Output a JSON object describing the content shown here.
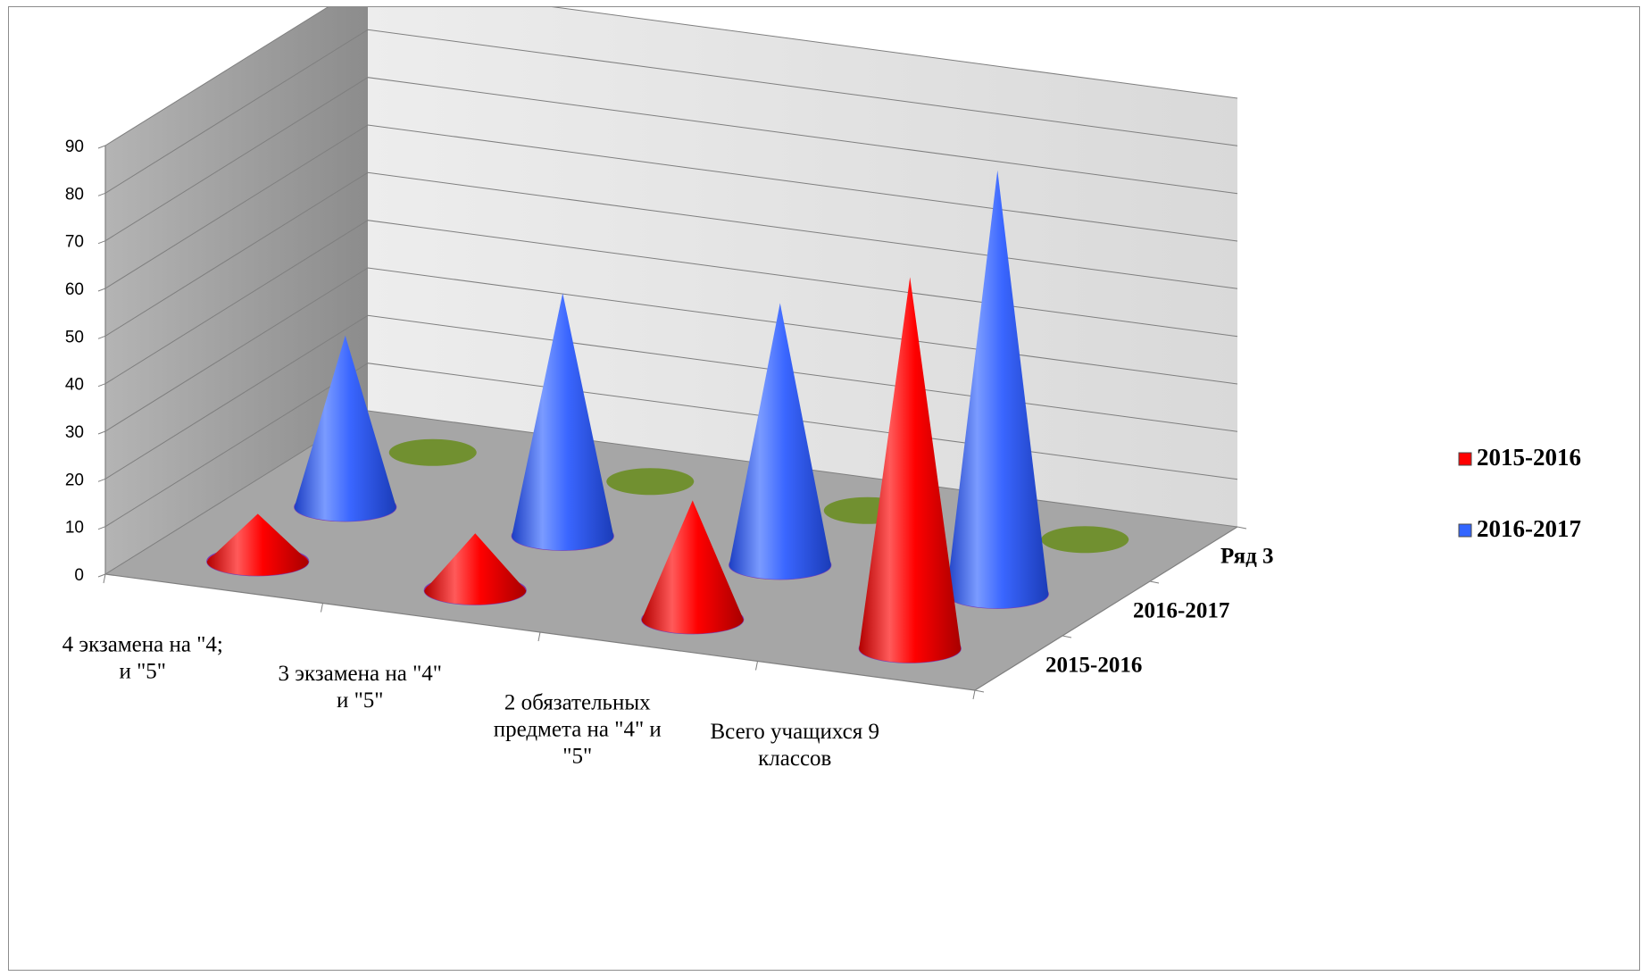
{
  "chart_data": {
    "type": "bar",
    "style": "3d-cone",
    "categories": [
      [
        "4 экзамена на \"4;",
        "и \"5\""
      ],
      [
        "3 экзамена  на \"4\"",
        "и \"5\""
      ],
      [
        "2 обязательных",
        "предмета на \"4\" и",
        "\"5\""
      ],
      [
        "Всего учащихся 9",
        "классов"
      ]
    ],
    "series": [
      {
        "name": "2015-2016",
        "values": [
          10,
          12,
          25,
          78
        ],
        "color": "#ff0000"
      },
      {
        "name": "2016-2017",
        "values": [
          36,
          51,
          55,
          89
        ],
        "color": "#3366ff"
      },
      {
        "name": "Ряд 3",
        "values": [
          0,
          0,
          0,
          0
        ],
        "color": "#6b8e23"
      }
    ],
    "depth_labels": [
      "2015-2016",
      "2016-2017",
      "Ряд 3"
    ],
    "ylim": [
      0,
      90
    ],
    "yticks": [
      0,
      10,
      20,
      30,
      40,
      50,
      60,
      70,
      80,
      90
    ],
    "grid": true,
    "legend": {
      "position": "right",
      "entries": [
        {
          "label": "2015-2016",
          "color": "#ff0000"
        },
        {
          "label": "2016-2017",
          "color": "#3366ff"
        }
      ]
    },
    "title": "",
    "xlabel": "",
    "ylabel": ""
  }
}
